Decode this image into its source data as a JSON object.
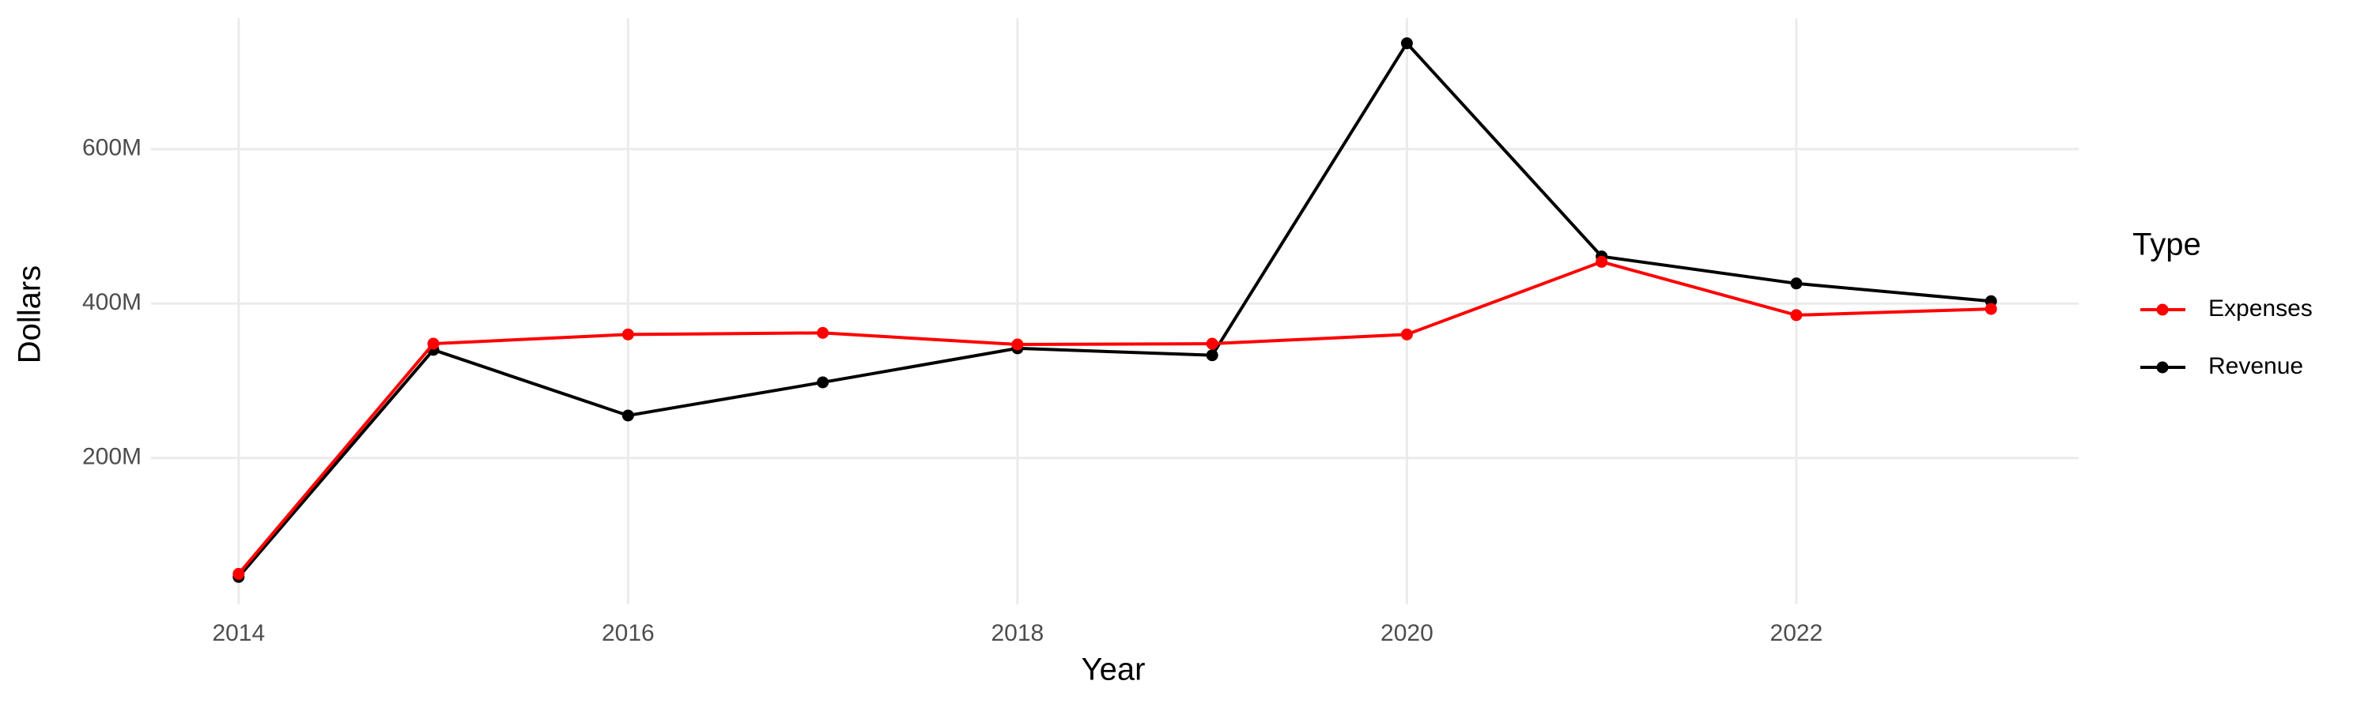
{
  "chart_data": {
    "type": "line",
    "x_label": "Year",
    "y_label": "Dollars",
    "x": [
      2014,
      2015,
      2016,
      2017,
      2018,
      2019,
      2020,
      2021,
      2022,
      2023
    ],
    "series": [
      {
        "name": "Expenses",
        "color": "#ff0000",
        "values": [
          50000000,
          348000000,
          360000000,
          362000000,
          347000000,
          348000000,
          360000000,
          454000000,
          385000000,
          393000000
        ]
      },
      {
        "name": "Revenue",
        "color": "#000000",
        "values": [
          46000000,
          340000000,
          255000000,
          298000000,
          342000000,
          333000000,
          737000000,
          461000000,
          426000000,
          403000000
        ]
      }
    ],
    "xlim": [
      2013.55,
      2023.45
    ],
    "xticks": [
      2014,
      2016,
      2018,
      2020,
      2022
    ],
    "ylim": [
      10500000,
      769500000
    ],
    "yticks": [
      {
        "value": 200000000,
        "label": "200M"
      },
      {
        "value": 400000000,
        "label": "400M"
      },
      {
        "value": 600000000,
        "label": "600M"
      }
    ],
    "grid": true,
    "legend_title": "Type",
    "legend_position": "right"
  }
}
